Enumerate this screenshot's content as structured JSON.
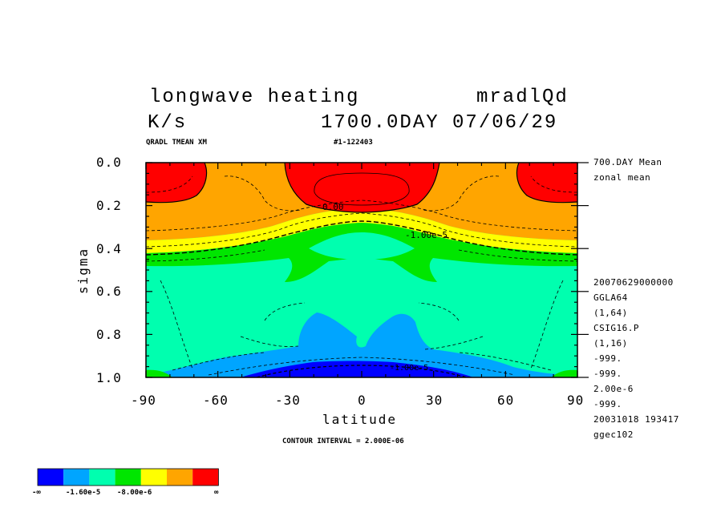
{
  "header": {
    "title": "longwave heating",
    "var_code": "mradlQd",
    "units": "K/s",
    "time": "1700.0DAY 07/06/29",
    "sub_left": "QRADL TMEAN XM",
    "sub_mid": "#1-122403"
  },
  "side_info": {
    "top": [
      "700.DAY Mean",
      "zonal mean"
    ],
    "bottom": [
      "20070629000000",
      "GGLA64",
      "(1,64)",
      "CSIG16.P",
      "(1,16)",
      "-999.",
      "-999.",
      "2.00e-6",
      "-999.",
      "20031018 193417",
      "ggec102"
    ]
  },
  "footer": {
    "contour_interval": "CONTOUR INTERVAL = 2.000E-06"
  },
  "colors": {
    "darkblue": "#0000ff",
    "medblue": "#00a5ff",
    "cyan": "#00ffaf",
    "green": "#00e600",
    "yellow": "#ffff00",
    "orange": "#ffa500",
    "red": "#ff0000"
  },
  "chart_data": {
    "type": "contour",
    "title": "longwave heating",
    "xlabel": "latitude",
    "ylabel": "sigma",
    "x_ticks": [
      "-90",
      "-60",
      "-30",
      "0",
      "30",
      "60",
      "90"
    ],
    "y_ticks": [
      "0.0",
      "0.2",
      "0.4",
      "0.6",
      "0.8",
      "1.0"
    ],
    "xlim": [
      -90,
      90
    ],
    "ylim": [
      1.0,
      0.0
    ],
    "contour_interval": 2e-06,
    "contour_labels": [
      {
        "text": "0.00",
        "lat": -10,
        "sigma": 0.22
      },
      {
        "text": "-1.00e-5",
        "lat": 25,
        "sigma": 0.35
      },
      {
        "text": "-1.00e-5",
        "lat": 22,
        "sigma": 0.98
      }
    ],
    "colorbar": {
      "colors": [
        "darkblue",
        "medblue",
        "cyan",
        "green",
        "yellow",
        "orange",
        "red"
      ],
      "labels": [
        "-∞",
        "-1.60e-5",
        "-8.00e-6",
        "∞"
      ]
    }
  }
}
